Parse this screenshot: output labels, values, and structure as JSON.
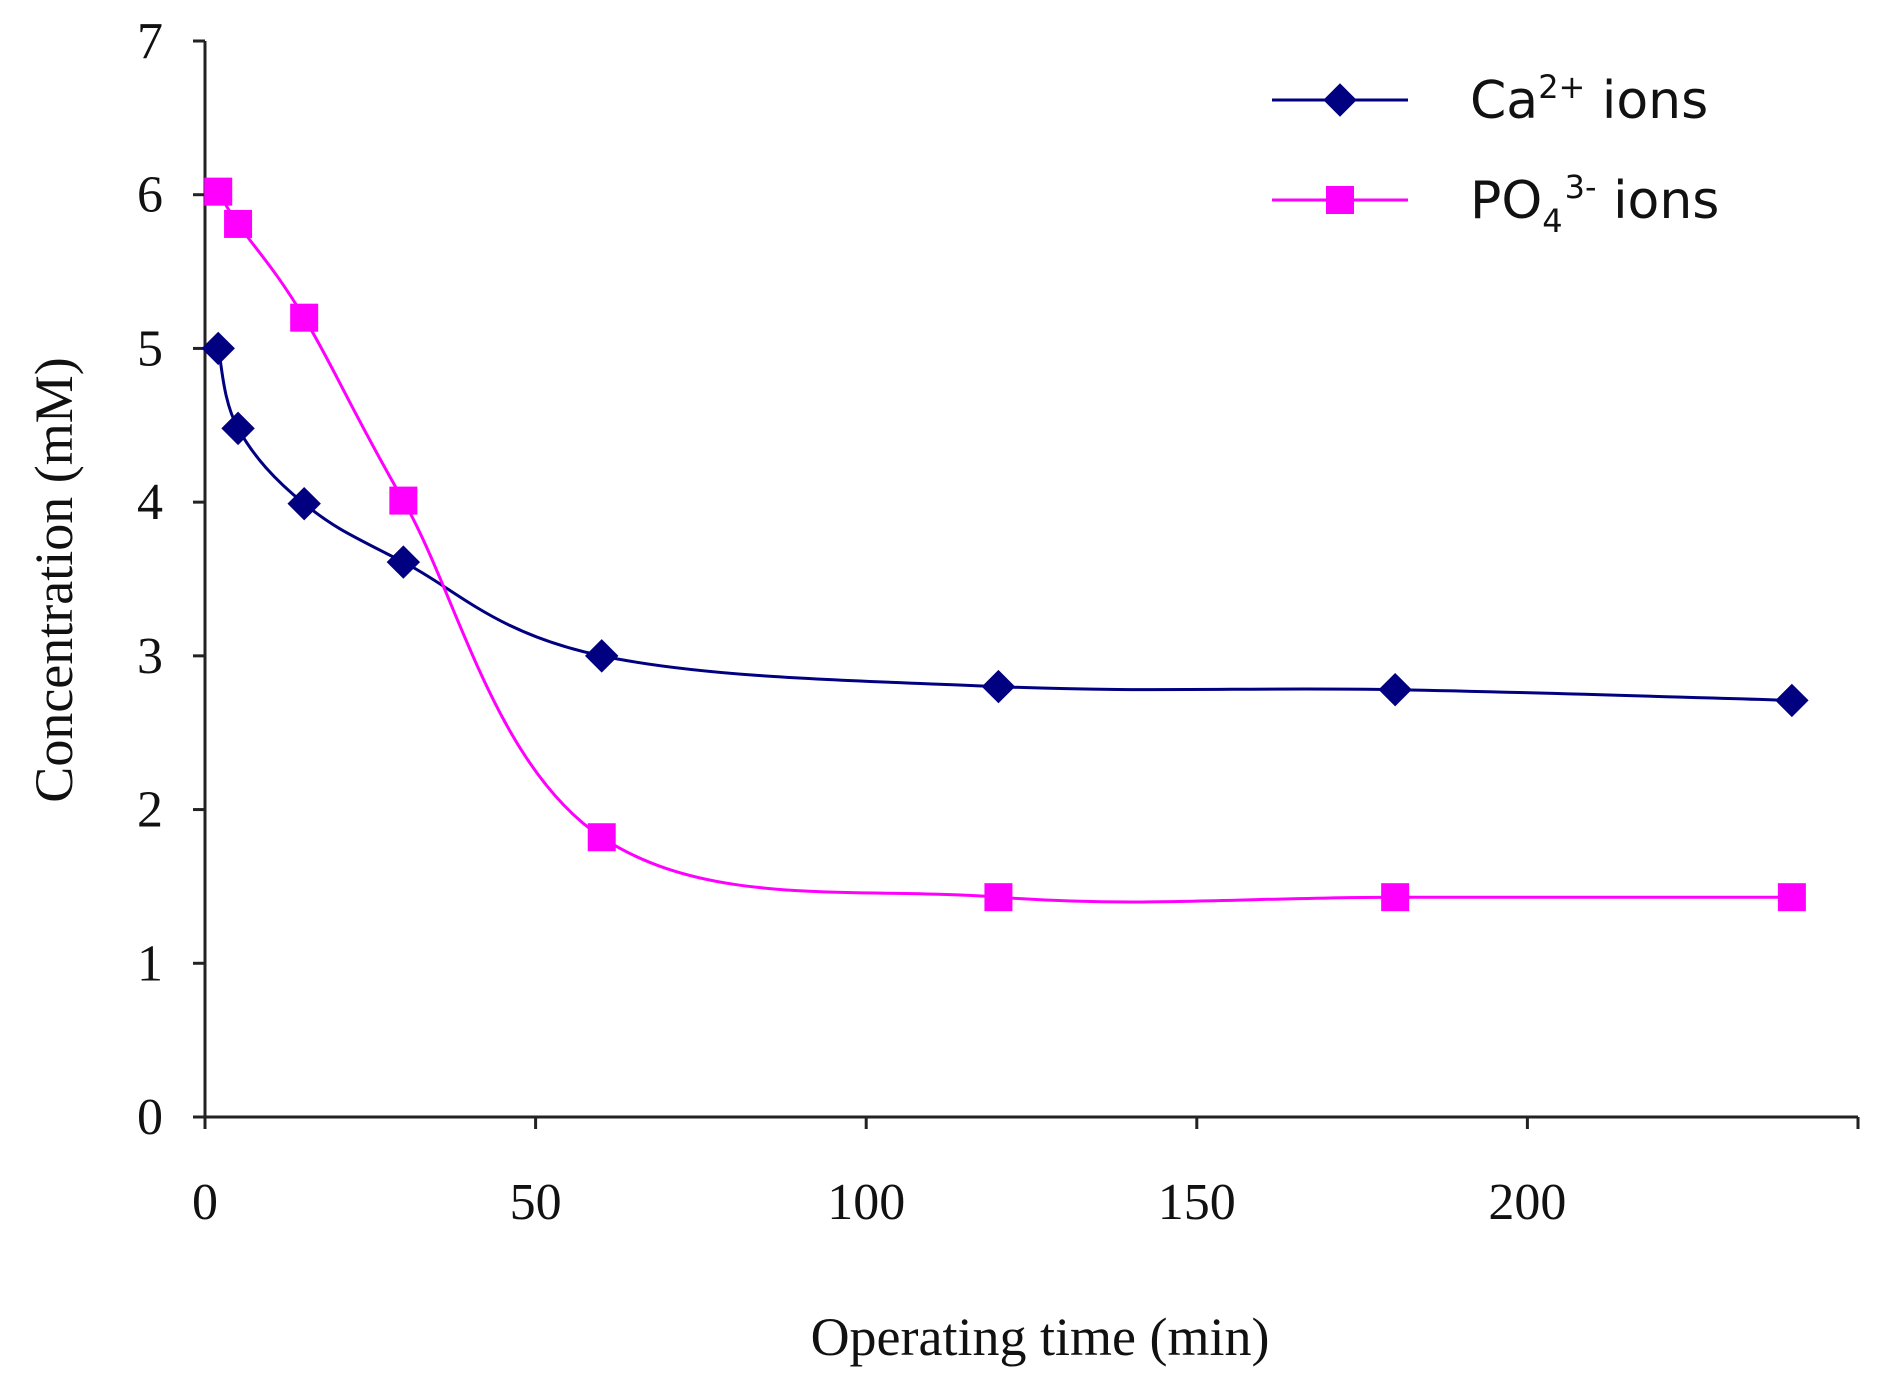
{
  "chart_data": {
    "type": "line",
    "title": "",
    "xlabel": "Operating time (min)",
    "ylabel": "Concentration (mM)",
    "xlim": [
      0,
      250
    ],
    "ylim": [
      0,
      7
    ],
    "xticks": [
      0,
      50,
      100,
      150,
      200
    ],
    "yticks": [
      0,
      1,
      2,
      3,
      4,
      5,
      6,
      7
    ],
    "grid": false,
    "legend_position": "top-right",
    "series": [
      {
        "name": "Ca2+ ions",
        "legend_base": "Ca",
        "legend_sup": "2+",
        "legend_sub": "",
        "legend_suffix": " ions",
        "marker": "diamond",
        "color": "#000080",
        "x": [
          2,
          5,
          15,
          30,
          60,
          120,
          180,
          240
        ],
        "y": [
          5.0,
          4.48,
          3.99,
          3.61,
          3.0,
          2.8,
          2.78,
          2.71
        ]
      },
      {
        "name": "PO43- ions",
        "legend_base": "PO",
        "legend_sup": "3-",
        "legend_sub": "4",
        "legend_suffix": " ions",
        "marker": "square",
        "color": "#FF00FF",
        "x": [
          2,
          5,
          15,
          30,
          60,
          120,
          180,
          240
        ],
        "y": [
          6.02,
          5.81,
          5.2,
          4.01,
          1.82,
          1.43,
          1.43,
          1.43
        ]
      }
    ]
  }
}
